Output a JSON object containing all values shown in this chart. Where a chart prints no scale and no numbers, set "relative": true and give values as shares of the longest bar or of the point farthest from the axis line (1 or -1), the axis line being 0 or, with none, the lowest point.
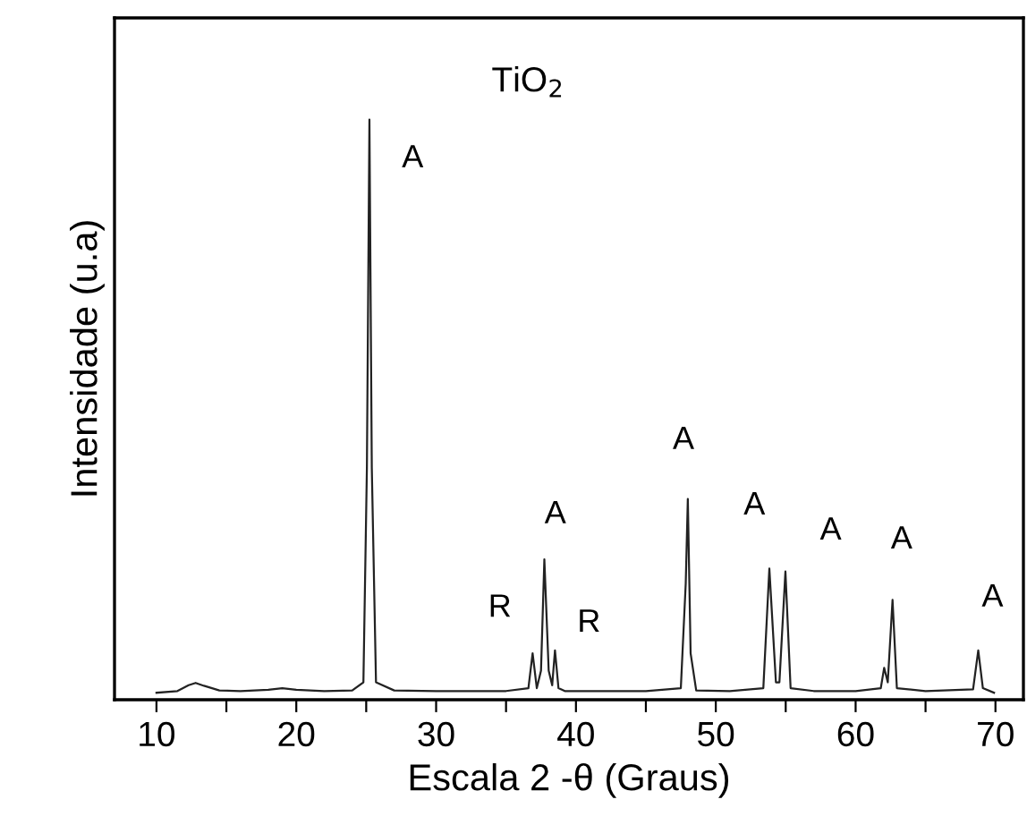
{
  "chart_data": {
    "type": "line",
    "relative": true,
    "xlabel": "Escala 2 -θ (Graus)",
    "ylabel": "Intensidade (u.a)",
    "xlim": [
      7,
      72
    ],
    "xticks": [
      10,
      {
        "value": 15,
        "label": null
      },
      20,
      {
        "value": 25,
        "label": null
      },
      30,
      {
        "value": 35,
        "label": null
      },
      40,
      {
        "value": 45,
        "label": null
      },
      50,
      {
        "value": 55,
        "label": null
      },
      60,
      {
        "value": 65,
        "label": null
      },
      70
    ],
    "series": [
      {
        "color": "#222222",
        "x": [
          10,
          11.5,
          12.3,
          12.8,
          13.4,
          14.5,
          16,
          18,
          19,
          20,
          22,
          24,
          24.8,
          25.05,
          25.23,
          25.4,
          25.7,
          27,
          30,
          33,
          35,
          36.6,
          36.9,
          37.2,
          37.5,
          37.74,
          38.05,
          38.3,
          38.5,
          38.75,
          39.2,
          42,
          45,
          47.5,
          47.85,
          48.0,
          48.2,
          48.6,
          51,
          53.4,
          53.83,
          54.3,
          54.55,
          54.98,
          55.35,
          57,
          60,
          61.8,
          62.04,
          62.3,
          62.64,
          62.95,
          65,
          68.4,
          68.77,
          69.1,
          69.9
        ],
        "values": [
          0.012,
          0.015,
          0.025,
          0.029,
          0.024,
          0.016,
          0.015,
          0.017,
          0.02,
          0.017,
          0.015,
          0.016,
          0.03,
          0.4,
          1.0,
          0.4,
          0.03,
          0.016,
          0.015,
          0.015,
          0.015,
          0.02,
          0.08,
          0.02,
          0.05,
          0.242,
          0.05,
          0.025,
          0.085,
          0.02,
          0.015,
          0.015,
          0.015,
          0.02,
          0.2,
          0.346,
          0.08,
          0.016,
          0.015,
          0.02,
          0.226,
          0.03,
          0.03,
          0.221,
          0.02,
          0.015,
          0.015,
          0.02,
          0.055,
          0.03,
          0.172,
          0.02,
          0.015,
          0.018,
          0.085,
          0.02,
          0.012
        ]
      }
    ],
    "annotations": [
      "TiO$_{2}$",
      "A",
      "R",
      "A",
      "R",
      "A",
      "A",
      "A",
      "A",
      "A"
    ],
    "grid": false,
    "legend": false
  }
}
